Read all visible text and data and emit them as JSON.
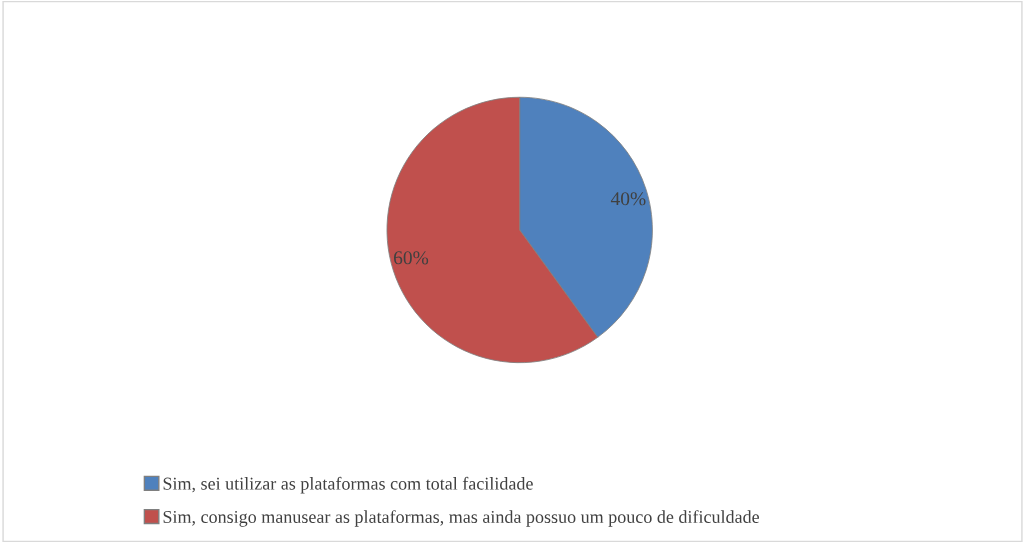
{
  "chart_data": {
    "type": "pie",
    "categories": [
      "Sim, sei utilizar as plataformas com total facilidade",
      "Sim, consigo manusear as plataformas, mas ainda possuo um pouco de dificuldade"
    ],
    "values": [
      40,
      60
    ],
    "colors": [
      "#4f81bd",
      "#c0504d"
    ],
    "value_labels": [
      "40%",
      "60%"
    ],
    "legend": "bottom"
  }
}
